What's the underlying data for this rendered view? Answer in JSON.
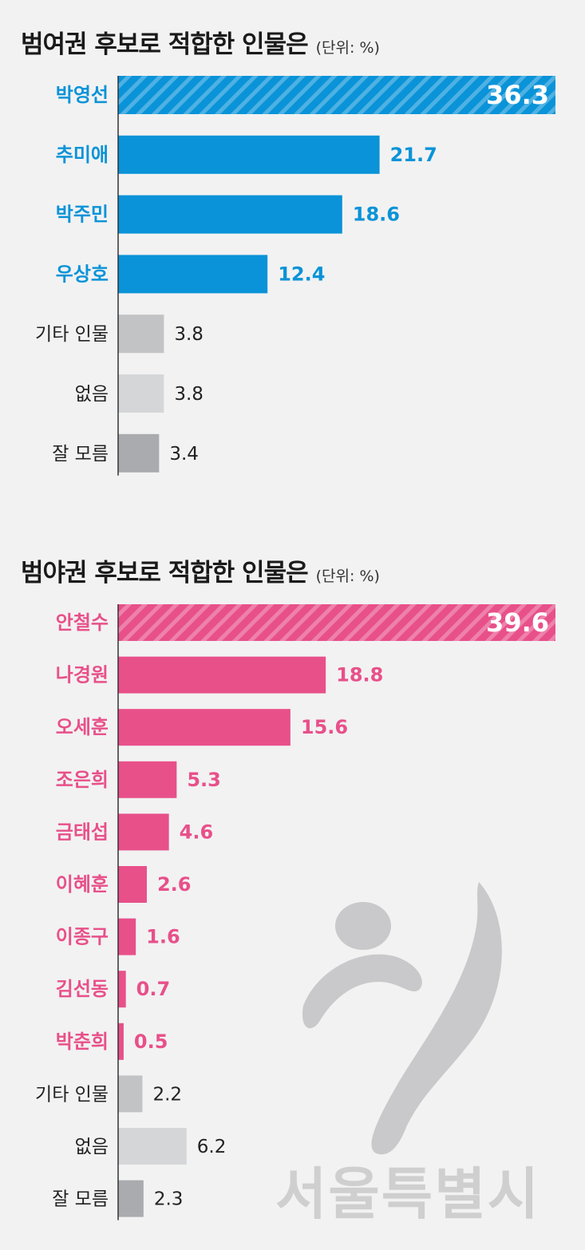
{
  "watermark": {
    "text": "서울특별시"
  },
  "chart_data": [
    {
      "type": "bar",
      "orientation": "horizontal",
      "title": "범여권 후보로 적합한 인물은",
      "unit": "(단위: %)",
      "categories": [
        "박영선",
        "추미애",
        "박주민",
        "우상호",
        "기타 인물",
        "없음",
        "잘 모름"
      ],
      "values": [
        36.3,
        21.7,
        18.6,
        12.4,
        3.8,
        3.8,
        3.4
      ],
      "value_labels": [
        "36.3",
        "21.7",
        "18.6",
        "12.4",
        "3.8",
        "3.8",
        "3.4"
      ],
      "highlight_color": "#0a93d8",
      "highlight_count": 4,
      "colors": [
        "#0a93d8",
        "#0a93d8",
        "#0a93d8",
        "#0a93d8",
        "#c2c3c5",
        "#d5d6d8",
        "#a9abae"
      ],
      "xlim": [
        0,
        36.3
      ],
      "grid": false
    },
    {
      "type": "bar",
      "orientation": "horizontal",
      "title": "범야권 후보로 적합한 인물은",
      "unit": "(단위: %)",
      "categories": [
        "안철수",
        "나경원",
        "오세훈",
        "조은희",
        "금태섭",
        "이혜훈",
        "이종구",
        "김선동",
        "박춘희",
        "기타 인물",
        "없음",
        "잘 모름"
      ],
      "values": [
        39.6,
        18.8,
        15.6,
        5.3,
        4.6,
        2.6,
        1.6,
        0.7,
        0.5,
        2.2,
        6.2,
        2.3
      ],
      "value_labels": [
        "39.6",
        "18.8",
        "15.6",
        "5.3",
        "4.6",
        "2.6",
        "1.6",
        "0.7",
        "0.5",
        "2.2",
        "6.2",
        "2.3"
      ],
      "highlight_color": "#e8508a",
      "highlight_count": 9,
      "colors": [
        "#e8508a",
        "#e8508a",
        "#e8508a",
        "#e8508a",
        "#e8508a",
        "#e8508a",
        "#e8508a",
        "#e8508a",
        "#e8508a",
        "#c2c3c5",
        "#d5d6d8",
        "#a9abae"
      ],
      "xlim": [
        0,
        39.6
      ],
      "grid": false
    }
  ]
}
